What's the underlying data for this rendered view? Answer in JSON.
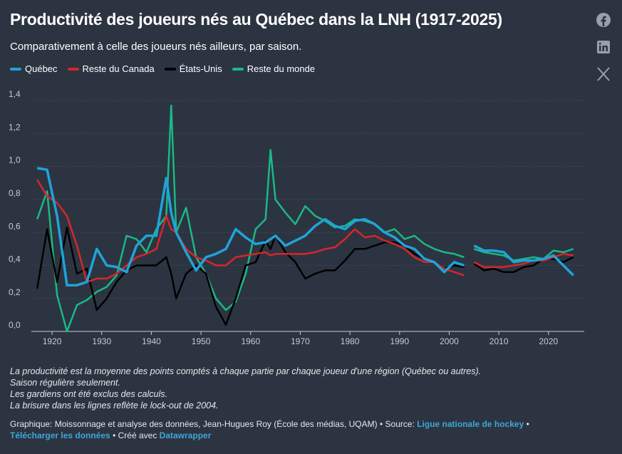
{
  "chart_data": {
    "type": "line",
    "title": "Productivité des joueurs nés au Québec dans la LNH (1917-2025)",
    "subtitle": "Comparativement à celle des joueurs nés ailleurs, par saison.",
    "x": [
      1917,
      1919,
      1921,
      1923,
      1925,
      1927,
      1929,
      1931,
      1933,
      1935,
      1937,
      1939,
      1941,
      1943,
      1944,
      1945,
      1947,
      1949,
      1951,
      1953,
      1955,
      1957,
      1959,
      1961,
      1963,
      1964,
      1965,
      1967,
      1969,
      1971,
      1973,
      1975,
      1977,
      1979,
      1981,
      1983,
      1985,
      1987,
      1989,
      1991,
      1993,
      1995,
      1997,
      1999,
      2001,
      2003,
      2004,
      2005,
      2007,
      2009,
      2011,
      2013,
      2015,
      2017,
      2019,
      2021,
      2023,
      2025
    ],
    "series": [
      {
        "name": "Québec",
        "color": "#1fa3d9",
        "values": [
          0.99,
          0.98,
          0.7,
          0.28,
          0.28,
          0.3,
          0.5,
          0.4,
          0.39,
          0.36,
          0.52,
          0.58,
          0.58,
          0.93,
          0.72,
          0.6,
          0.48,
          0.37,
          0.45,
          0.47,
          0.5,
          0.62,
          0.57,
          0.53,
          0.54,
          0.56,
          0.58,
          0.52,
          0.55,
          0.58,
          0.64,
          0.68,
          0.64,
          0.62,
          0.67,
          0.68,
          0.65,
          0.6,
          0.57,
          0.52,
          0.5,
          0.44,
          0.42,
          0.36,
          0.42,
          0.4,
          null,
          0.52,
          0.49,
          0.49,
          0.48,
          0.42,
          0.43,
          0.43,
          0.44,
          0.46,
          0.4,
          0.34
        ]
      },
      {
        "name": "Reste du Canada",
        "color": "#d7262b",
        "values": [
          0.92,
          0.82,
          0.78,
          0.7,
          0.52,
          0.3,
          0.32,
          0.32,
          0.35,
          0.4,
          0.45,
          0.47,
          0.5,
          0.7,
          0.62,
          0.6,
          0.5,
          0.45,
          0.43,
          0.4,
          0.4,
          0.45,
          0.46,
          0.47,
          0.48,
          0.46,
          0.47,
          0.47,
          0.47,
          0.47,
          0.48,
          0.5,
          0.51,
          0.56,
          0.62,
          0.57,
          0.58,
          0.55,
          0.53,
          0.5,
          0.45,
          0.42,
          0.42,
          0.38,
          0.36,
          0.34,
          null,
          0.42,
          0.39,
          0.39,
          0.39,
          0.4,
          0.41,
          0.43,
          0.43,
          0.45,
          0.47,
          0.46
        ]
      },
      {
        "name": "États-Unis",
        "color": "#000000",
        "values": [
          0.26,
          0.62,
          0.3,
          0.63,
          0.35,
          0.38,
          0.13,
          0.2,
          0.3,
          0.37,
          0.4,
          0.4,
          0.4,
          0.45,
          0.35,
          0.2,
          0.35,
          0.4,
          0.35,
          0.15,
          0.04,
          0.2,
          0.4,
          0.42,
          0.55,
          0.5,
          0.58,
          0.48,
          0.42,
          0.32,
          0.35,
          0.37,
          0.37,
          0.43,
          0.5,
          0.5,
          0.52,
          0.54,
          0.54,
          0.52,
          0.47,
          0.44,
          0.42,
          0.38,
          0.4,
          0.39,
          null,
          0.41,
          0.37,
          0.38,
          0.36,
          0.36,
          0.39,
          0.4,
          0.44,
          0.44,
          0.42,
          0.45
        ]
      },
      {
        "name": "Reste du monde",
        "color": "#1ab886",
        "values": [
          0.68,
          0.85,
          0.22,
          0,
          0.16,
          0.19,
          0.24,
          0.27,
          0.34,
          0.58,
          0.56,
          0.48,
          0.62,
          0.7,
          1.37,
          0.6,
          0.75,
          0.45,
          0.35,
          0.2,
          0.13,
          0.18,
          0.35,
          0.62,
          0.68,
          1.1,
          0.8,
          0.72,
          0.65,
          0.76,
          0.7,
          0.67,
          0.63,
          0.64,
          0.68,
          0.67,
          0.65,
          0.6,
          0.62,
          0.56,
          0.58,
          0.53,
          0.5,
          0.48,
          0.47,
          0.45,
          null,
          0.5,
          0.48,
          0.47,
          0.46,
          0.43,
          0.44,
          0.45,
          0.44,
          0.49,
          0.48,
          0.5
        ]
      }
    ],
    "xlim": [
      1917.4,
      2027.2
    ],
    "xticks": [
      1920,
      1930,
      1940,
      1950,
      1960,
      1970,
      1980,
      1990,
      2000,
      2010,
      2020
    ],
    "ylim": [
      0,
      1.4
    ],
    "yticks": [
      {
        "value": 0,
        "label": "0,0"
      },
      {
        "value": 0.2,
        "label": "0,2"
      },
      {
        "value": 0.4,
        "label": "0,4"
      },
      {
        "value": 0.6,
        "label": "0,6"
      },
      {
        "value": 0.8,
        "label": "0,8"
      },
      {
        "value": 1,
        "label": "1,0"
      },
      {
        "value": 1.2,
        "label": "1,2"
      },
      {
        "value": 1.4,
        "label": "1,4"
      }
    ],
    "grid": true,
    "notes": [
      "La productivité est la moyenne des points comptés à chaque partie par chaque joueur d'une région (Québec ou autres).",
      "Saison régulière seulement.",
      "Les gardiens ont été exclus des calculs.",
      "La brisure dans les lignes reflète le lock-out de 2004."
    ],
    "footer": {
      "byline": "Graphique: Moissonnage et analyse des données, Jean-Hugues Roy (École des médias, UQAM)",
      "separator": "•",
      "source_label": "Source:",
      "source": "Ligue nationale de hockey",
      "download": "Télécharger les données",
      "made_with": "Créé avec",
      "tool": "Datawrapper"
    }
  }
}
